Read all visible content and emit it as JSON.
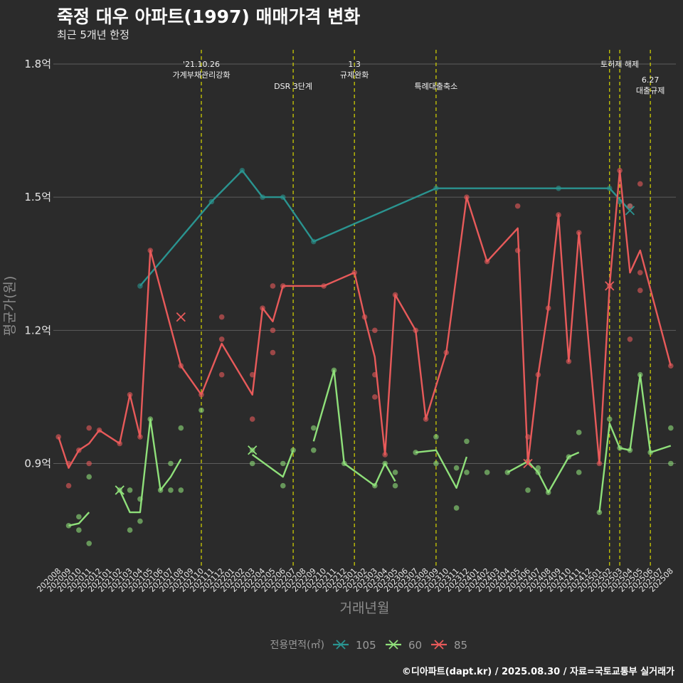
{
  "title": "죽정 대우 아파트(1997) 매매가격 변화",
  "subtitle": "최근 5개년 한정",
  "caption": "©디아파트(dapt.kr) / 2025.08.30 / 자료=국토교통부 실거래가",
  "chart_data": {
    "type": "line",
    "xlabel": "거래년월",
    "ylabel": "평균가(원)",
    "y_unit": "억원",
    "ylim": [
      0.67,
      1.84
    ],
    "y_ticks": [
      {
        "value": 0.9,
        "label": "0.9억"
      },
      {
        "value": 1.2,
        "label": "1.2억"
      },
      {
        "value": 1.5,
        "label": "1.5억"
      },
      {
        "value": 1.8,
        "label": "1.8억"
      }
    ],
    "grid": true,
    "legend_title": "전용면적(㎡)",
    "legend_position": "bottom",
    "categories": [
      "202008",
      "202009",
      "202010",
      "202011",
      "202012",
      "202101",
      "202102",
      "202103",
      "202104",
      "202105",
      "202106",
      "202107",
      "202108",
      "202109",
      "202110",
      "202111",
      "202112",
      "202201",
      "202202",
      "202203",
      "202204",
      "202205",
      "202206",
      "202207",
      "202208",
      "202209",
      "202210",
      "202211",
      "202212",
      "202301",
      "202302",
      "202303",
      "202304",
      "202305",
      "202306",
      "202307",
      "202308",
      "202309",
      "202310",
      "202311",
      "202312",
      "202401",
      "202402",
      "202403",
      "202404",
      "202405",
      "202406",
      "202407",
      "202408",
      "202409",
      "202410",
      "202411",
      "202412",
      "202501",
      "202502",
      "202503",
      "202504",
      "202505",
      "202506",
      "202507",
      "202508"
    ],
    "annotations": [
      {
        "x": "202110",
        "lines": [
          "'21.10.26",
          "가계부채관리강화"
        ],
        "row": 1
      },
      {
        "x": "202207",
        "lines": [
          "DSR 3단계"
        ],
        "row": 2
      },
      {
        "x": "202301",
        "lines": [
          "1.3",
          "규제완화"
        ],
        "row": 1
      },
      {
        "x": "202309",
        "lines": [
          "특례대출축소"
        ],
        "row": 2
      },
      {
        "x": "202502",
        "lines": [],
        "row": 1
      },
      {
        "x": "202503",
        "lines": [
          "토허제 해제"
        ],
        "row": 1
      },
      {
        "x": "202506",
        "lines": [
          "6.27",
          "대출규제"
        ],
        "row": 3
      }
    ],
    "series": [
      {
        "name": "105",
        "color": "#2a9490",
        "line": [
          [
            "202104",
            1.3
          ],
          [
            "202111",
            1.49
          ],
          [
            "202202",
            1.56
          ],
          [
            "202204",
            1.5
          ],
          [
            "202206",
            1.5
          ],
          [
            "202209",
            1.4
          ],
          [
            "202309",
            1.52
          ],
          [
            "202409",
            1.52
          ],
          [
            "202502",
            1.52
          ],
          [
            "202504",
            1.47
          ]
        ],
        "points": [
          [
            "202104",
            1.3
          ],
          [
            "202111",
            1.49
          ],
          [
            "202202",
            1.56
          ],
          [
            "202204",
            1.5
          ],
          [
            "202206",
            1.5
          ],
          [
            "202209",
            1.4
          ],
          [
            "202309",
            1.52
          ],
          [
            "202409",
            1.52
          ],
          [
            "202502",
            1.52
          ],
          [
            "202503",
            1.49
          ],
          [
            "202504",
            1.48
          ]
        ],
        "x_marks": [
          [
            "202504",
            1.47
          ]
        ]
      },
      {
        "name": "60",
        "color": "#8fe07a",
        "line_segments": [
          [
            [
              "202009",
              0.76
            ],
            [
              "202010",
              0.765
            ],
            [
              "202011",
              0.79
            ]
          ],
          [
            [
              "202102",
              0.84
            ],
            [
              "202103",
              0.79
            ],
            [
              "202104",
              0.79
            ],
            [
              "202105",
              1.0
            ],
            [
              "202106",
              0.84
            ],
            [
              "202107",
              0.87
            ],
            [
              "202108",
              0.91
            ]
          ],
          [
            [
              "202203",
              0.92
            ],
            [
              "202206",
              0.87
            ],
            [
              "202207",
              0.93
            ]
          ],
          [
            [
              "202209",
              0.95
            ],
            [
              "202211",
              1.11
            ],
            [
              "202212",
              0.9
            ],
            [
              "202303",
              0.85
            ],
            [
              "202304",
              0.9
            ],
            [
              "202305",
              0.86
            ]
          ],
          [
            [
              "202307",
              0.925
            ],
            [
              "202309",
              0.93
            ],
            [
              "202311",
              0.845
            ],
            [
              "202312",
              0.915
            ]
          ],
          [
            [
              "202404",
              0.88
            ],
            [
              "202406",
              0.905
            ],
            [
              "202407",
              0.88
            ],
            [
              "202408",
              0.835
            ],
            [
              "202410",
              0.915
            ],
            [
              "202411",
              0.925
            ]
          ],
          [
            [
              "202501",
              0.79
            ],
            [
              "202502",
              0.99
            ],
            [
              "202503",
              0.935
            ],
            [
              "202504",
              0.93
            ],
            [
              "202505",
              1.1
            ],
            [
              "202506",
              0.925
            ],
            [
              "202508",
              0.94
            ]
          ]
        ],
        "points": [
          [
            "202009",
            0.76
          ],
          [
            "202010",
            0.78
          ],
          [
            "202010",
            0.75
          ],
          [
            "202011",
            0.87
          ],
          [
            "202011",
            0.72
          ],
          [
            "202102",
            0.84
          ],
          [
            "202103",
            0.84
          ],
          [
            "202103",
            0.75
          ],
          [
            "202104",
            0.82
          ],
          [
            "202104",
            0.77
          ],
          [
            "202105",
            1.0
          ],
          [
            "202106",
            0.84
          ],
          [
            "202107",
            0.9
          ],
          [
            "202107",
            0.84
          ],
          [
            "202108",
            0.98
          ],
          [
            "202108",
            0.84
          ],
          [
            "202110",
            1.02
          ],
          [
            "202203",
            0.93
          ],
          [
            "202203",
            0.9
          ],
          [
            "202206",
            0.9
          ],
          [
            "202206",
            0.85
          ],
          [
            "202207",
            0.93
          ],
          [
            "202209",
            0.98
          ],
          [
            "202209",
            0.93
          ],
          [
            "202211",
            1.11
          ],
          [
            "202212",
            0.9
          ],
          [
            "202303",
            0.85
          ],
          [
            "202304",
            0.9
          ],
          [
            "202305",
            0.88
          ],
          [
            "202305",
            0.85
          ],
          [
            "202307",
            0.925
          ],
          [
            "202309",
            0.96
          ],
          [
            "202309",
            0.9
          ],
          [
            "202311",
            0.89
          ],
          [
            "202311",
            0.8
          ],
          [
            "202312",
            0.95
          ],
          [
            "202312",
            0.88
          ],
          [
            "202402",
            0.88
          ],
          [
            "202404",
            0.88
          ],
          [
            "202406",
            0.84
          ],
          [
            "202406",
            0.905
          ],
          [
            "202407",
            0.89
          ],
          [
            "202407",
            0.88
          ],
          [
            "202408",
            0.835
          ],
          [
            "202410",
            0.915
          ],
          [
            "202411",
            0.97
          ],
          [
            "202411",
            0.88
          ],
          [
            "202501",
            0.79
          ],
          [
            "202502",
            1.0
          ],
          [
            "202503",
            0.935
          ],
          [
            "202504",
            0.93
          ],
          [
            "202505",
            1.1
          ],
          [
            "202506",
            0.925
          ],
          [
            "202508",
            0.98
          ],
          [
            "202508",
            0.9
          ]
        ],
        "x_marks": [
          [
            "202102",
            0.84
          ],
          [
            "202203",
            0.93
          ]
        ]
      },
      {
        "name": "85",
        "color": "#e85a5a",
        "line": [
          [
            "202008",
            0.96
          ],
          [
            "202009",
            0.89
          ],
          [
            "202010",
            0.93
          ],
          [
            "202011",
            0.945
          ],
          [
            "202012",
            0.975
          ],
          [
            "202102",
            0.945
          ],
          [
            "202103",
            1.055
          ],
          [
            "202104",
            0.96
          ],
          [
            "202105",
            1.38
          ],
          [
            "202108",
            1.12
          ],
          [
            "202110",
            1.055
          ],
          [
            "202112",
            1.17
          ],
          [
            "202203",
            1.055
          ],
          [
            "202204",
            1.25
          ],
          [
            "202205",
            1.22
          ],
          [
            "202206",
            1.3
          ],
          [
            "202210",
            1.3
          ],
          [
            "202301",
            1.33
          ],
          [
            "202302",
            1.23
          ],
          [
            "202303",
            1.14
          ],
          [
            "202304",
            0.92
          ],
          [
            "202305",
            1.28
          ],
          [
            "202307",
            1.2
          ],
          [
            "202308",
            1.0
          ],
          [
            "202310",
            1.15
          ],
          [
            "202312",
            1.5
          ],
          [
            "202402",
            1.355
          ],
          [
            "202405",
            1.43
          ],
          [
            "202406",
            0.9
          ],
          [
            "202407",
            1.1
          ],
          [
            "202408",
            1.25
          ],
          [
            "202409",
            1.46
          ],
          [
            "202410",
            1.13
          ],
          [
            "202411",
            1.42
          ],
          [
            "202501",
            0.9
          ],
          [
            "202502",
            1.3
          ],
          [
            "202503",
            1.56
          ],
          [
            "202504",
            1.33
          ],
          [
            "202505",
            1.38
          ],
          [
            "202508",
            1.12
          ]
        ],
        "points": [
          [
            "202008",
            0.96
          ],
          [
            "202009",
            0.9
          ],
          [
            "202009",
            0.85
          ],
          [
            "202010",
            0.93
          ],
          [
            "202011",
            0.98
          ],
          [
            "202011",
            0.9
          ],
          [
            "202012",
            0.975
          ],
          [
            "202102",
            0.945
          ],
          [
            "202103",
            1.055
          ],
          [
            "202104",
            0.96
          ],
          [
            "202105",
            1.38
          ],
          [
            "202108",
            1.12
          ],
          [
            "202110",
            1.055
          ],
          [
            "202112",
            1.23
          ],
          [
            "202112",
            1.18
          ],
          [
            "202112",
            1.1
          ],
          [
            "202203",
            1.1
          ],
          [
            "202203",
            1.0
          ],
          [
            "202204",
            1.25
          ],
          [
            "202205",
            1.3
          ],
          [
            "202205",
            1.2
          ],
          [
            "202205",
            1.15
          ],
          [
            "202206",
            1.3
          ],
          [
            "202210",
            1.3
          ],
          [
            "202301",
            1.33
          ],
          [
            "202302",
            1.23
          ],
          [
            "202303",
            1.2
          ],
          [
            "202303",
            1.1
          ],
          [
            "202303",
            1.05
          ],
          [
            "202304",
            0.92
          ],
          [
            "202305",
            1.28
          ],
          [
            "202307",
            1.2
          ],
          [
            "202308",
            1.0
          ],
          [
            "202310",
            1.15
          ],
          [
            "202312",
            1.5
          ],
          [
            "202402",
            1.355
          ],
          [
            "202405",
            1.48
          ],
          [
            "202405",
            1.38
          ],
          [
            "202406",
            0.96
          ],
          [
            "202407",
            1.1
          ],
          [
            "202408",
            1.25
          ],
          [
            "202409",
            1.46
          ],
          [
            "202410",
            1.13
          ],
          [
            "202411",
            1.42
          ],
          [
            "202501",
            0.9
          ],
          [
            "202502",
            1.3
          ],
          [
            "202503",
            1.56
          ],
          [
            "202504",
            1.48
          ],
          [
            "202504",
            1.18
          ],
          [
            "202505",
            1.53
          ],
          [
            "202505",
            1.33
          ],
          [
            "202505",
            1.29
          ],
          [
            "202508",
            1.12
          ]
        ],
        "x_marks": [
          [
            "202108",
            1.23
          ],
          [
            "202406",
            0.9
          ],
          [
            "202502",
            1.3
          ]
        ]
      }
    ]
  }
}
